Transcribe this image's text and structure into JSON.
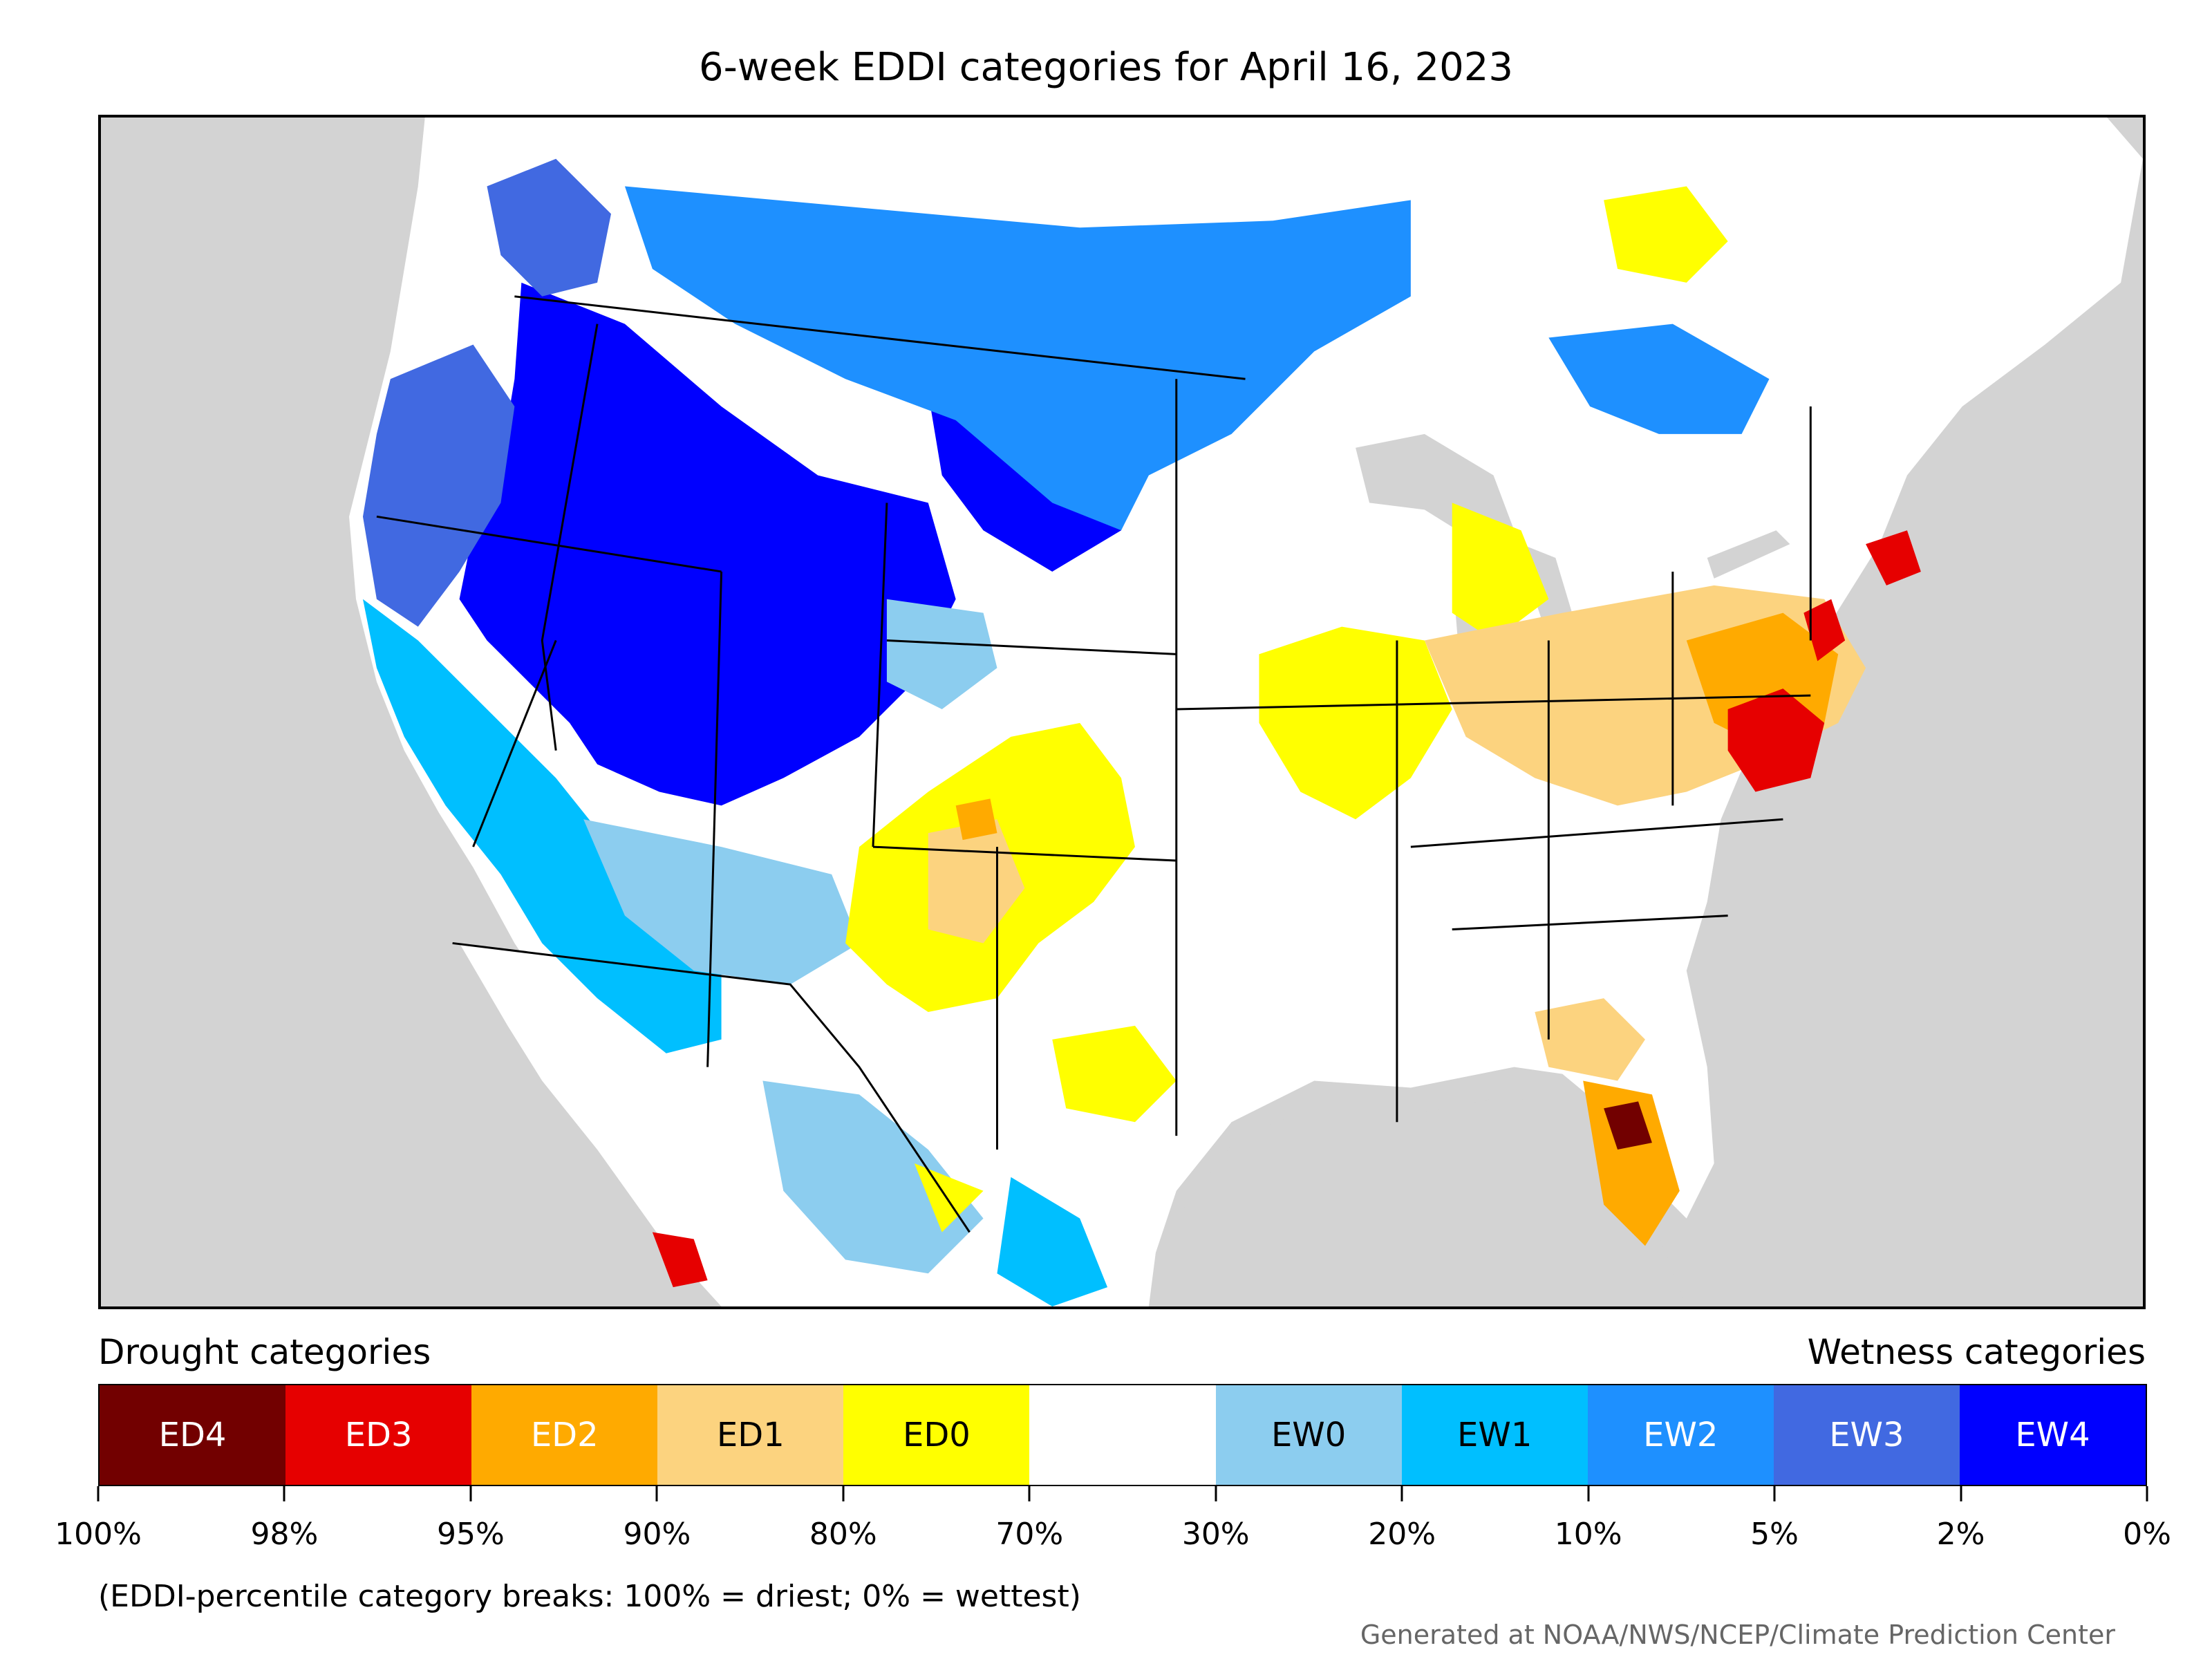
{
  "map": {
    "title": "6-week EDDI categories for April 16, 2023",
    "region": "Contiguous United States",
    "projection": "Lambert conformal conic"
  },
  "legend": {
    "drought_header": "Drought categories",
    "wetness_header": "Wetness categories",
    "categories": [
      {
        "label": "ED4",
        "color": "#720000",
        "text_color": "#ffffff"
      },
      {
        "label": "ED3",
        "color": "#e60000",
        "text_color": "#ffffff"
      },
      {
        "label": "ED2",
        "color": "#ffaa00",
        "text_color": "#ffffff"
      },
      {
        "label": "ED1",
        "color": "#fcd37f",
        "text_color": "#000000"
      },
      {
        "label": "ED0",
        "color": "#ffff00",
        "text_color": "#000000"
      },
      {
        "label": "",
        "color": "#ffffff",
        "text_color": "#000000"
      },
      {
        "label": "EW0",
        "color": "#8ccdef",
        "text_color": "#000000"
      },
      {
        "label": "EW1",
        "color": "#00bfff",
        "text_color": "#000000"
      },
      {
        "label": "EW2",
        "color": "#1e90ff",
        "text_color": "#ffffff"
      },
      {
        "label": "EW3",
        "color": "#4169e1",
        "text_color": "#ffffff"
      },
      {
        "label": "EW4",
        "color": "#0000ff",
        "text_color": "#ffffff"
      }
    ],
    "breaks": [
      "100%",
      "98%",
      "95%",
      "90%",
      "80%",
      "70%",
      "30%",
      "20%",
      "10%",
      "5%",
      "2%",
      "0%"
    ],
    "note": "(EDDI-percentile category breaks: 100% = driest; 0% = wettest)"
  },
  "credit": "Generated at NOAA/NWS/NCEP/Climate Prediction Center",
  "colors": {
    "ocean": "#d3d3d3",
    "land": "#ffffff",
    "border": "#000000"
  }
}
